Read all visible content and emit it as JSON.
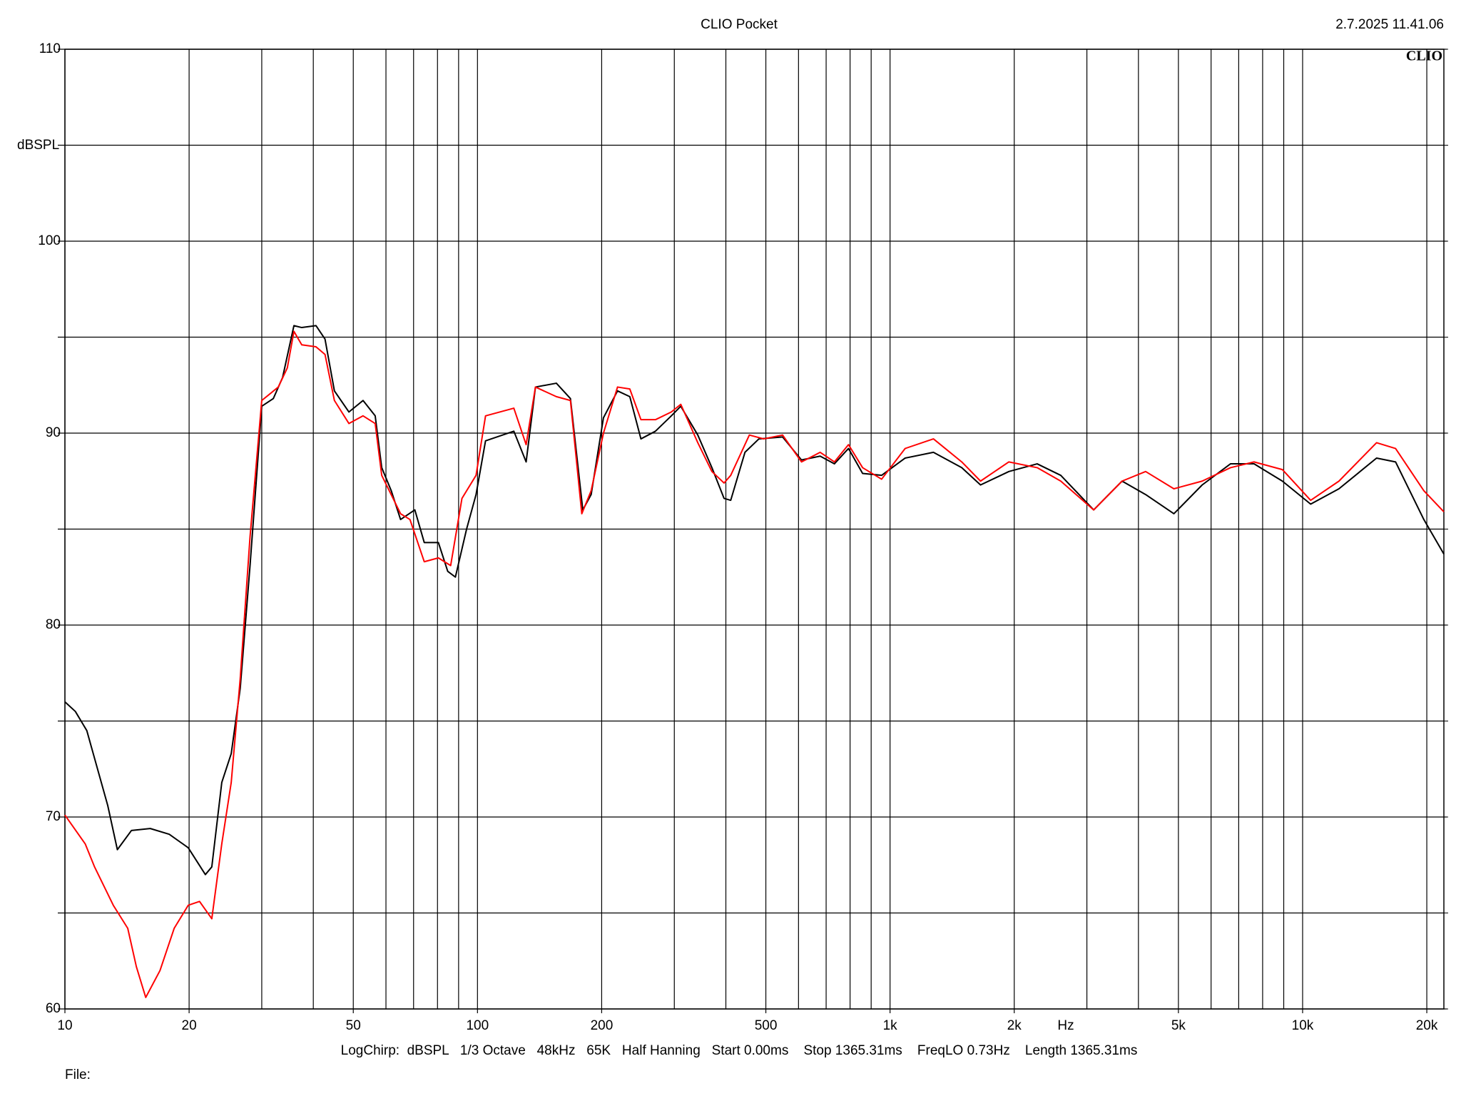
{
  "chart_data": {
    "type": "line",
    "title": "CLIO Pocket",
    "timestamp": "2.7.2025 11.41.06",
    "logo": "CLIO",
    "ylabel": "dBSPL",
    "xlabel": "Hz",
    "footer": "LogChirp:  dBSPL   1/3 Octave   48kHz   65K   Half Hanning   Start 0.00ms    Stop 1365.31ms    FreqLO 0.73Hz    Length 1365.31ms",
    "file_label": "File:",
    "xscale": "log",
    "grid": true,
    "xlim": [
      10,
      22000
    ],
    "ylim": [
      60,
      110
    ],
    "xticks": [
      10,
      20,
      50,
      100,
      200,
      500,
      {
        "value": 1000,
        "label": "1k"
      },
      {
        "value": 2000,
        "label": "2k"
      },
      {
        "value": 5000,
        "label": "5k"
      },
      {
        "value": 10000,
        "label": "10k"
      },
      {
        "value": 20000,
        "label": "20k"
      }
    ],
    "xgrid": [
      30,
      40,
      60,
      70,
      80,
      90,
      300,
      400,
      600,
      700,
      800,
      900,
      3000,
      4000,
      6000,
      7000,
      8000,
      9000
    ],
    "yticks": [
      60,
      70,
      80,
      90,
      100,
      110
    ],
    "ygrid": [
      65,
      75,
      85,
      95,
      105
    ],
    "series": [
      {
        "color": "#000000",
        "x": [
          10,
          10.6,
          11.3,
          12.7,
          13.4,
          14.5,
          16.1,
          17.9,
          19.9,
          21.9,
          22.7,
          24.0,
          25.3,
          26.6,
          28.1,
          30.0,
          32.0,
          33.7,
          35.9,
          37.5,
          40.6,
          42.7,
          45.0,
          48.8,
          52.8,
          56.5,
          58.6,
          61.8,
          65.1,
          70.5,
          74.3,
          80.4,
          84.7,
          88.4,
          94.1,
          99.2,
          104.6,
          122.5,
          131.2,
          138.2,
          155.3,
          168,
          180,
          188.6,
          202,
          218.5,
          234,
          249,
          270,
          295,
          311,
          342,
          370,
          396,
          411,
          445,
          481,
          549,
          610,
          677,
          733,
          793,
          858,
          954,
          1088,
          1274,
          1492,
          1657,
          1941,
          2273,
          2593,
          3116,
          3651,
          4164,
          4875,
          5709,
          6686,
          7626,
          8932,
          10460,
          12250,
          15110,
          16800,
          19670,
          22000
        ],
        "values": [
          76,
          75.5,
          74.5,
          70.6,
          68.3,
          69.3,
          69.4,
          69.1,
          68.4,
          67.0,
          67.4,
          71.8,
          73.3,
          76.7,
          83.1,
          91.4,
          91.8,
          92.9,
          95.6,
          95.5,
          95.6,
          94.9,
          92.2,
          91.1,
          91.7,
          90.9,
          88.2,
          87.0,
          85.5,
          86.0,
          84.3,
          84.3,
          82.8,
          82.5,
          85.0,
          86.8,
          89.6,
          90.1,
          88.5,
          92.4,
          92.6,
          91.8,
          86.0,
          86.8,
          90.8,
          92.2,
          91.9,
          89.7,
          90.1,
          90.9,
          91.4,
          89.9,
          88.2,
          86.6,
          86.5,
          89.0,
          89.7,
          89.8,
          88.6,
          88.8,
          88.4,
          89.2,
          87.9,
          87.8,
          88.7,
          89.0,
          88.2,
          87.3,
          88.0,
          88.4,
          87.8,
          86.0,
          87.5,
          86.8,
          85.8,
          87.3,
          88.4,
          88.4,
          87.5,
          86.3,
          87.1,
          88.7,
          88.5,
          85.5,
          83.7
        ]
      },
      {
        "color": "#ff0000",
        "x": [
          10,
          11.2,
          11.8,
          13.1,
          14.2,
          14.9,
          15.7,
          17.0,
          18.4,
          19.9,
          21.2,
          22.7,
          24.0,
          25.3,
          26.6,
          28.1,
          30.0,
          32.9,
          34.6,
          35.9,
          37.5,
          40.6,
          42.7,
          45.0,
          48.8,
          52.8,
          56.5,
          58.6,
          65.1,
          68.6,
          74.3,
          80.4,
          86.1,
          91.7,
          99.2,
          104.6,
          122.5,
          131.2,
          138.2,
          155.3,
          168,
          179,
          188.6,
          202,
          218.5,
          234,
          249,
          270,
          295,
          311,
          342,
          370,
          396,
          411,
          456,
          494,
          549,
          610,
          677,
          733,
          793,
          858,
          954,
          1088,
          1274,
          1492,
          1657,
          1941,
          2273,
          2593,
          3116,
          3651,
          4164,
          4875,
          5709,
          6686,
          7626,
          8932,
          10460,
          12250,
          15110,
          16800,
          19670,
          22000
        ],
        "values": [
          70.1,
          68.6,
          67.4,
          65.4,
          64.2,
          62.2,
          60.6,
          62.0,
          64.2,
          65.4,
          65.6,
          64.7,
          68.6,
          71.8,
          77.2,
          84.6,
          91.7,
          92.4,
          93.4,
          95.3,
          94.6,
          94.5,
          94.1,
          91.7,
          90.5,
          90.9,
          90.5,
          87.8,
          85.8,
          85.5,
          83.3,
          83.5,
          83.1,
          86.6,
          87.8,
          90.9,
          91.3,
          89.4,
          92.4,
          91.9,
          91.7,
          85.8,
          87.0,
          90.0,
          92.4,
          92.3,
          90.7,
          90.7,
          91.1,
          91.5,
          89.5,
          88.0,
          87.4,
          87.8,
          89.9,
          89.7,
          89.9,
          88.5,
          89.0,
          88.5,
          89.4,
          88.2,
          87.6,
          89.2,
          89.7,
          88.5,
          87.5,
          88.5,
          88.2,
          87.5,
          86.0,
          87.5,
          88.0,
          87.1,
          87.5,
          88.2,
          88.5,
          88.1,
          86.5,
          87.5,
          89.5,
          89.2,
          87.0,
          85.9
        ]
      }
    ]
  }
}
